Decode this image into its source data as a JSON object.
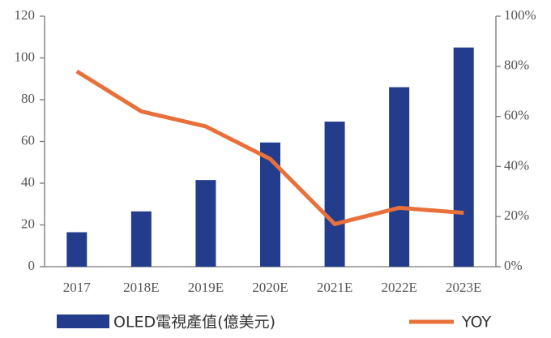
{
  "chart_data": {
    "type": "bar",
    "categories": [
      "2017",
      "2018E",
      "2019E",
      "2020E",
      "2021E",
      "2022E",
      "2023E"
    ],
    "series": [
      {
        "name": "OLED電視產值(億美元)",
        "type": "bar",
        "color": "#233c8c",
        "values": [
          16.5,
          26.5,
          41.5,
          59.5,
          69.5,
          86,
          105
        ]
      },
      {
        "name": "YOY",
        "type": "line",
        "axis": "y2",
        "color": "#e8703a",
        "values": [
          78,
          62,
          56,
          43,
          17,
          23.5,
          21.5
        ]
      }
    ],
    "ylim": [
      0,
      120
    ],
    "yticks": [
      0,
      20,
      40,
      60,
      80,
      100,
      120
    ],
    "y2lim": [
      0,
      100
    ],
    "y2ticks": [
      {
        "value": 0,
        "label": "0%"
      },
      {
        "value": 20,
        "label": "20%"
      },
      {
        "value": 40,
        "label": "40%"
      },
      {
        "value": 60,
        "label": "60%"
      },
      {
        "value": 80,
        "label": "80%"
      },
      {
        "value": 100,
        "label": "100%"
      }
    ],
    "grid": false
  }
}
